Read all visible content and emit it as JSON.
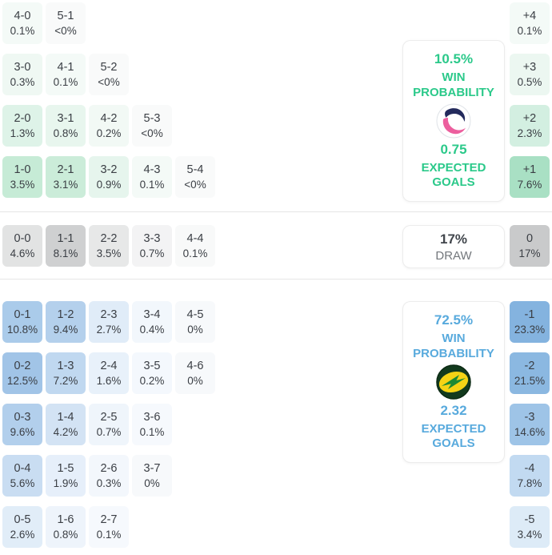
{
  "colors": {
    "home_accent": "#2bc98a",
    "away_accent": "#58aadd",
    "draw_value": "#41464c",
    "draw_label": "#73777c",
    "divider": "#e6e6e6",
    "cell_text": "#3a3e44",
    "panel_border": "#ececec"
  },
  "chart_data": {
    "type": "heatmap",
    "title": "Correct score probability matrix with win/draw probabilities, expected goals and goal-difference distribution",
    "legend_position": "right",
    "sections": [
      {
        "id": "home",
        "panel": {
          "win_pct": "10.5%",
          "win_label": "WIN PROBABILITY",
          "xg": "0.75",
          "xg_label": "EXPECTED GOALS",
          "logo": "home-team-logo",
          "accent": "#2bc98a"
        },
        "rows": [
          [
            {
              "score": "4-0",
              "pct": "0.1%",
              "bg": "#f4faf7"
            },
            {
              "score": "5-1",
              "pct": "<0%",
              "bg": "#f9fafa"
            }
          ],
          [
            {
              "score": "3-0",
              "pct": "0.3%",
              "bg": "#eff8f3"
            },
            {
              "score": "4-1",
              "pct": "0.1%",
              "bg": "#f4faf7"
            },
            {
              "score": "5-2",
              "pct": "<0%",
              "bg": "#f9fafa"
            }
          ],
          [
            {
              "score": "2-0",
              "pct": "1.3%",
              "bg": "#def3e8"
            },
            {
              "score": "3-1",
              "pct": "0.8%",
              "bg": "#e8f6ee"
            },
            {
              "score": "4-2",
              "pct": "0.2%",
              "bg": "#f2f9f5"
            },
            {
              "score": "5-3",
              "pct": "<0%",
              "bg": "#f9fafa"
            }
          ],
          [
            {
              "score": "1-0",
              "pct": "3.5%",
              "bg": "#c6ebd6"
            },
            {
              "score": "2-1",
              "pct": "3.1%",
              "bg": "#cbecd9"
            },
            {
              "score": "3-2",
              "pct": "0.9%",
              "bg": "#e6f5ed"
            },
            {
              "score": "4-3",
              "pct": "0.1%",
              "bg": "#f4faf7"
            },
            {
              "score": "5-4",
              "pct": "<0%",
              "bg": "#f9fafa"
            }
          ]
        ],
        "diff": [
          {
            "label": "+4",
            "pct": "0.1%",
            "bg": "#f4faf7"
          },
          {
            "label": "+3",
            "pct": "0.5%",
            "bg": "#ecf7f1"
          },
          {
            "label": "+2",
            "pct": "2.3%",
            "bg": "#d3efe1"
          },
          {
            "label": "+1",
            "pct": "7.6%",
            "bg": "#a9e0c4"
          }
        ]
      },
      {
        "id": "draw",
        "panel": {
          "pct": "17%",
          "label": "DRAW"
        },
        "rows": [
          [
            {
              "score": "0-0",
              "pct": "4.6%",
              "bg": "#e2e3e3"
            },
            {
              "score": "1-1",
              "pct": "8.1%",
              "bg": "#cfd0d1"
            },
            {
              "score": "2-2",
              "pct": "3.5%",
              "bg": "#e7e8e8"
            },
            {
              "score": "3-3",
              "pct": "0.7%",
              "bg": "#f3f3f4"
            },
            {
              "score": "4-4",
              "pct": "0.1%",
              "bg": "#f8f9f9"
            }
          ]
        ],
        "diff": [
          {
            "label": "0",
            "pct": "17%",
            "bg": "#c9cacb"
          }
        ]
      },
      {
        "id": "away",
        "panel": {
          "win_pct": "72.5%",
          "win_label": "WIN PROBABILITY",
          "xg": "2.32",
          "xg_label": "EXPECTED GOALS",
          "logo": "away-team-logo",
          "accent": "#58aadd"
        },
        "rows": [
          [
            {
              "score": "0-1",
              "pct": "10.8%",
              "bg": "#aacbea"
            },
            {
              "score": "1-2",
              "pct": "9.4%",
              "bg": "#b4d0ec"
            },
            {
              "score": "2-3",
              "pct": "2.7%",
              "bg": "#e0ecf8"
            },
            {
              "score": "3-4",
              "pct": "0.4%",
              "bg": "#f2f7fc"
            },
            {
              "score": "4-5",
              "pct": "0%",
              "bg": "#f7f9fb"
            }
          ],
          [
            {
              "score": "0-2",
              "pct": "12.5%",
              "bg": "#a1c4e7"
            },
            {
              "score": "1-3",
              "pct": "7.2%",
              "bg": "#c0d8f0"
            },
            {
              "score": "2-4",
              "pct": "1.6%",
              "bg": "#e8f1fa"
            },
            {
              "score": "3-5",
              "pct": "0.2%",
              "bg": "#f4f8fd"
            },
            {
              "score": "4-6",
              "pct": "0%",
              "bg": "#f7f9fb"
            }
          ],
          [
            {
              "score": "0-3",
              "pct": "9.6%",
              "bg": "#b2cfec"
            },
            {
              "score": "1-4",
              "pct": "4.2%",
              "bg": "#d3e3f4"
            },
            {
              "score": "2-5",
              "pct": "0.7%",
              "bg": "#eff5fb"
            },
            {
              "score": "3-6",
              "pct": "0.1%",
              "bg": "#f6f9fd"
            }
          ],
          [
            {
              "score": "0-4",
              "pct": "5.6%",
              "bg": "#c9ddf2"
            },
            {
              "score": "1-5",
              "pct": "1.9%",
              "bg": "#e6effa"
            },
            {
              "score": "2-6",
              "pct": "0.3%",
              "bg": "#f3f7fc"
            },
            {
              "score": "3-7",
              "pct": "0%",
              "bg": "#f7f9fb"
            }
          ],
          [
            {
              "score": "0-5",
              "pct": "2.6%",
              "bg": "#e1edf8"
            },
            {
              "score": "1-6",
              "pct": "0.8%",
              "bg": "#eef4fb"
            },
            {
              "score": "2-7",
              "pct": "0.1%",
              "bg": "#f6f9fd"
            }
          ]
        ],
        "diff": [
          {
            "label": "-1",
            "pct": "23.3%",
            "bg": "#84b3df"
          },
          {
            "label": "-2",
            "pct": "21.5%",
            "bg": "#8bb8e1"
          },
          {
            "label": "-3",
            "pct": "14.6%",
            "bg": "#9ec4e7"
          },
          {
            "label": "-4",
            "pct": "7.8%",
            "bg": "#c2daf1"
          },
          {
            "label": "-5",
            "pct": "3.4%",
            "bg": "#ddebf7"
          }
        ]
      }
    ]
  }
}
